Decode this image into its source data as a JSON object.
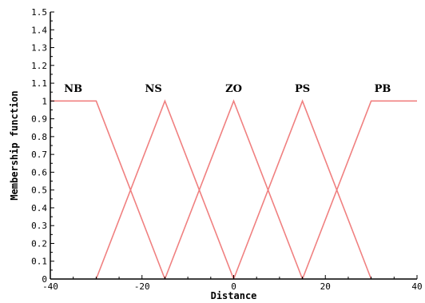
{
  "chart_data": {
    "type": "line",
    "xlabel": "Distance",
    "ylabel": "Membership function",
    "xlim": [
      -40,
      40
    ],
    "ylim": [
      0,
      1.5
    ],
    "grid": false,
    "legend": "none",
    "line_color": "#f08080",
    "x_ticks": [
      -40,
      -20,
      0,
      20,
      40
    ],
    "x_tick_labels": [
      "-40",
      "-20",
      "0",
      "20",
      "40"
    ],
    "y_ticks": [
      0,
      0.1,
      0.2,
      0.3,
      0.4,
      0.5,
      0.6,
      0.7,
      0.8,
      0.9,
      1,
      1.1,
      1.2,
      1.3,
      1.4,
      1.5
    ],
    "y_tick_labels": [
      "0",
      "0.1",
      "0.2",
      "0.3",
      "0.4",
      "0.5",
      "0.6",
      "0.7",
      "0.8",
      "0.9",
      "1",
      "1.1",
      "1.2",
      "1.3",
      "1.4",
      "1.5"
    ],
    "series": [
      {
        "name": "NB",
        "x": [
          -40,
          -30,
          -15
        ],
        "y": [
          1,
          1,
          0
        ]
      },
      {
        "name": "NS",
        "x": [
          -30,
          -15,
          0
        ],
        "y": [
          0,
          1,
          0
        ]
      },
      {
        "name": "ZO",
        "x": [
          -15,
          0,
          15
        ],
        "y": [
          0,
          1,
          0
        ]
      },
      {
        "name": "PS",
        "x": [
          0,
          15,
          30
        ],
        "y": [
          0,
          1,
          0
        ]
      },
      {
        "name": "PB",
        "x": [
          15,
          30,
          40
        ],
        "y": [
          0,
          1,
          1
        ]
      }
    ],
    "labels": [
      {
        "text": "NB",
        "x": -35,
        "y": 1.05
      },
      {
        "text": "NS",
        "x": -17.5,
        "y": 1.05
      },
      {
        "text": "ZO",
        "x": 0,
        "y": 1.05
      },
      {
        "text": "PS",
        "x": 15,
        "y": 1.05
      },
      {
        "text": "PB",
        "x": 32.5,
        "y": 1.05
      }
    ]
  }
}
